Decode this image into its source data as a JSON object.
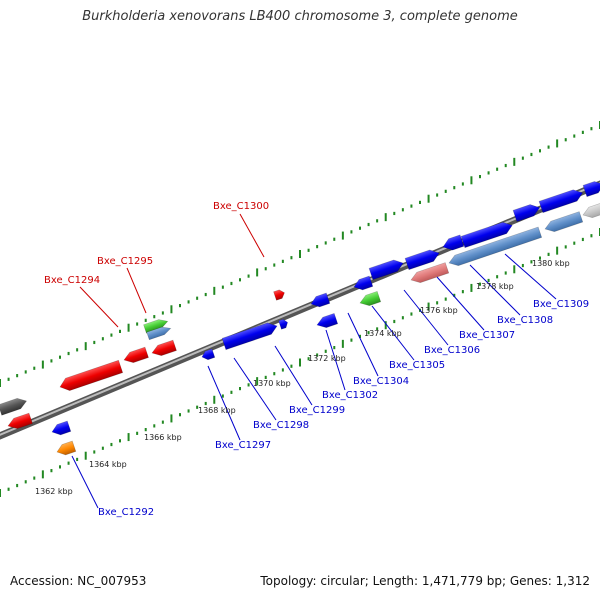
{
  "title": "Burkholderia xenovorans LB400 chromosome 3, complete genome",
  "footer": {
    "accession": "Accession: NC_007953",
    "summary": "Topology: circular; Length: 1,471,779 bp; Genes: 1,312"
  },
  "colors": {
    "forward_gene": "#0000ee",
    "reverse_gene": "#ee0000",
    "rna_gene": "#44cc33",
    "other_gene": "#ff8800",
    "pseudo_gene": "#555555",
    "light_blue_gene": "#5f8fc9",
    "pink_gene": "#e07a7a",
    "light_gray_gene": "#c8c8c8",
    "backbone": "#777777",
    "tick_mark": "#228822",
    "label_blue": "#0000cc",
    "label_red": "#cc0000"
  },
  "scale_labels": [
    "1362 kbp",
    "1364 kbp",
    "1366 kbp",
    "1368 kbp",
    "1370 kbp",
    "1372 kbp",
    "1374 kbp",
    "1376 kbp",
    "1378 kbp",
    "1380 kbp"
  ],
  "gene_labels": [
    {
      "name": "Bxe_C1292",
      "strand": "forward"
    },
    {
      "name": "Bxe_C1294",
      "strand": "reverse"
    },
    {
      "name": "Bxe_C1295",
      "strand": "reverse"
    },
    {
      "name": "Bxe_C1297",
      "strand": "forward"
    },
    {
      "name": "Bxe_C1298",
      "strand": "forward"
    },
    {
      "name": "Bxe_C1299",
      "strand": "forward"
    },
    {
      "name": "Bxe_C1300",
      "strand": "reverse"
    },
    {
      "name": "Bxe_C1302",
      "strand": "forward"
    },
    {
      "name": "Bxe_C1304",
      "strand": "forward"
    },
    {
      "name": "Bxe_C1305",
      "strand": "forward"
    },
    {
      "name": "Bxe_C1306",
      "strand": "forward"
    },
    {
      "name": "Bxe_C1307",
      "strand": "forward"
    },
    {
      "name": "Bxe_C1308",
      "strand": "forward"
    },
    {
      "name": "Bxe_C1309",
      "strand": "forward"
    }
  ]
}
